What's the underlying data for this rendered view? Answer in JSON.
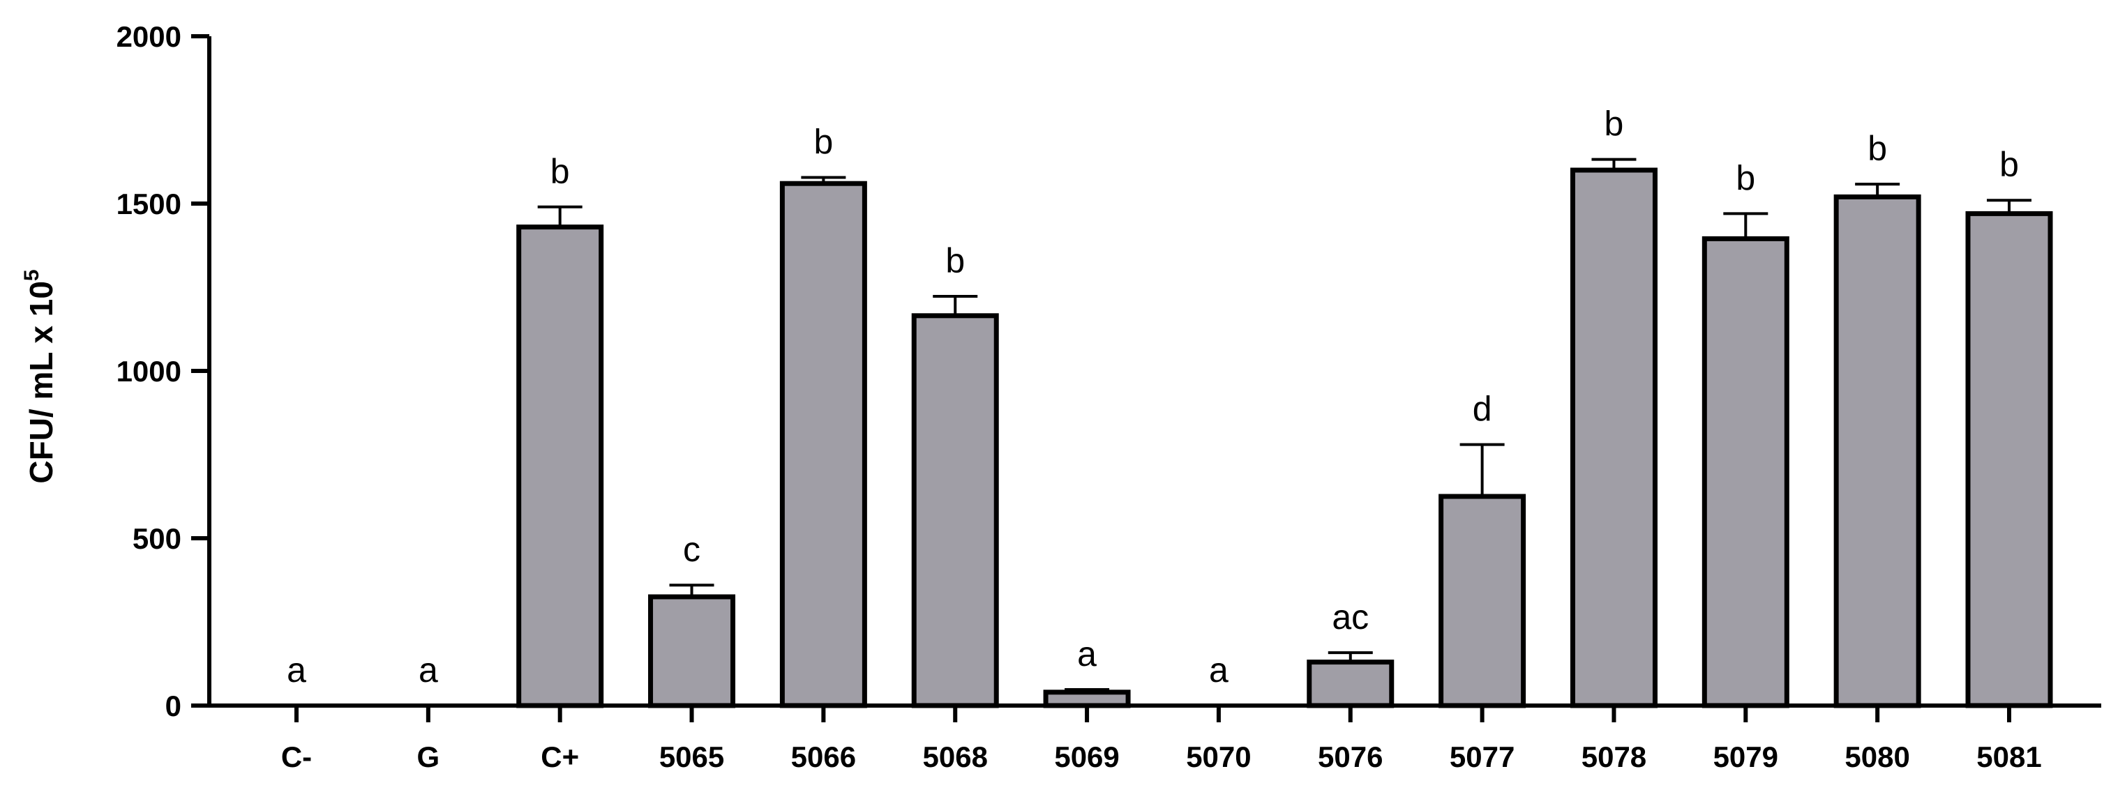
{
  "chart_data": {
    "type": "bar",
    "ylabel": "CFU/ mL x 10",
    "ylabel_sup": "5",
    "xlabel": "",
    "ylim": [
      0,
      2000
    ],
    "yticks": [
      "0",
      "500",
      "1000",
      "1500",
      "2000"
    ],
    "categories": [
      "C-",
      "G",
      "C+",
      "5065",
      "5066",
      "5068",
      "5069",
      "5070",
      "5076",
      "5077",
      "5078",
      "5079",
      "5080",
      "5081"
    ],
    "values": [
      0,
      0,
      1430,
      325,
      1560,
      1165,
      40,
      0,
      130,
      625,
      1600,
      1395,
      1520,
      1470
    ],
    "errors": [
      0,
      0,
      60,
      35,
      18,
      58,
      8,
      0,
      28,
      155,
      32,
      75,
      38,
      40
    ],
    "significance": [
      "a",
      "a",
      "b",
      "c",
      "b",
      "b",
      "a",
      "a",
      "ac",
      "d",
      "b",
      "b",
      "b",
      "b"
    ],
    "bar_color": "#a09ea6",
    "bar_edge_color": "#000000",
    "grid": false,
    "legend": "none"
  }
}
